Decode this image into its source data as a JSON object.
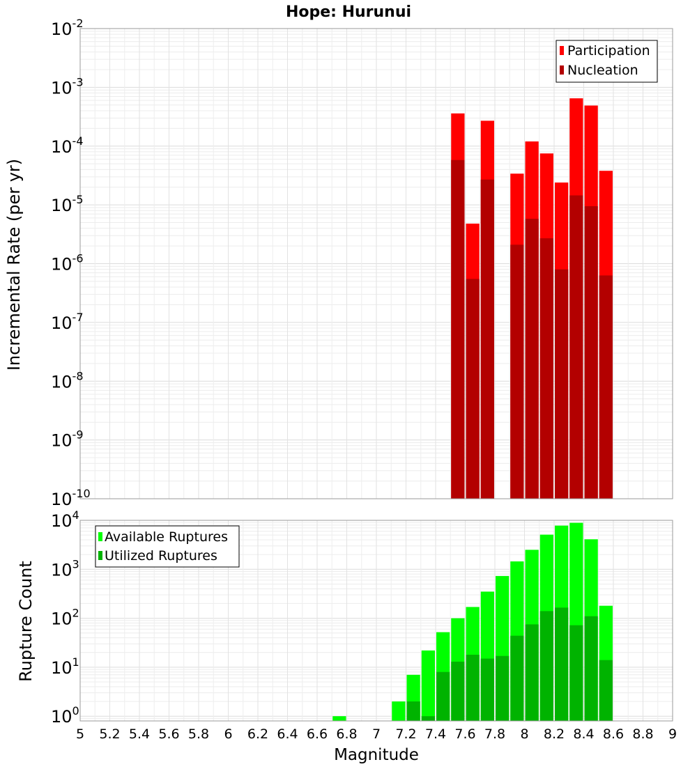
{
  "chart_data": [
    {
      "type": "bar",
      "title": "Hope: Hurunui",
      "xlabel": "",
      "ylabel": "Incremental Rate (per yr)",
      "yscale": "log",
      "ylim": [
        1e-10,
        0.01
      ],
      "xlim": [
        5,
        9
      ],
      "bin_width": 0.1,
      "ytick_labels": [
        {
          "base": "10",
          "exp": "-10"
        },
        {
          "base": "10",
          "exp": "-9"
        },
        {
          "base": "10",
          "exp": "-8"
        },
        {
          "base": "10",
          "exp": "-7"
        },
        {
          "base": "10",
          "exp": "-6"
        },
        {
          "base": "10",
          "exp": "-5"
        },
        {
          "base": "10",
          "exp": "-4"
        },
        {
          "base": "10",
          "exp": "-3"
        },
        {
          "base": "10",
          "exp": "-2"
        }
      ],
      "grid": true,
      "legend_position": "top-right",
      "series": [
        {
          "name": "Participation",
          "color": "#ff0000",
          "points": [
            {
              "x": 7.55,
              "y": 0.00036
            },
            {
              "x": 7.65,
              "y": 4.8e-06
            },
            {
              "x": 7.75,
              "y": 0.00027
            },
            {
              "x": 7.95,
              "y": 3.4e-05
            },
            {
              "x": 8.05,
              "y": 0.00012
            },
            {
              "x": 8.15,
              "y": 7.5e-05
            },
            {
              "x": 8.25,
              "y": 2.4e-05
            },
            {
              "x": 8.35,
              "y": 0.00065
            },
            {
              "x": 8.45,
              "y": 0.00049
            },
            {
              "x": 8.55,
              "y": 3.8e-05
            }
          ]
        },
        {
          "name": "Nucleation",
          "color": "#b30000",
          "points": [
            {
              "x": 7.55,
              "y": 5.8e-05
            },
            {
              "x": 7.65,
              "y": 5.5e-07
            },
            {
              "x": 7.75,
              "y": 2.7e-05
            },
            {
              "x": 7.95,
              "y": 2.1e-06
            },
            {
              "x": 8.05,
              "y": 5.8e-06
            },
            {
              "x": 8.15,
              "y": 2.7e-06
            },
            {
              "x": 8.25,
              "y": 8e-07
            },
            {
              "x": 8.35,
              "y": 1.45e-05
            },
            {
              "x": 8.45,
              "y": 9.5e-06
            },
            {
              "x": 8.55,
              "y": 6.3e-07
            }
          ]
        }
      ]
    },
    {
      "type": "bar",
      "title": "",
      "xlabel": "Magnitude",
      "ylabel": "Rupture Count",
      "yscale": "log",
      "ylim": [
        0.8,
        10000
      ],
      "xlim": [
        5,
        9
      ],
      "bin_width": 0.1,
      "ytick_labels": [
        {
          "base": "10",
          "exp": "0"
        },
        {
          "base": "10",
          "exp": "1"
        },
        {
          "base": "10",
          "exp": "2"
        },
        {
          "base": "10",
          "exp": "3"
        },
        {
          "base": "10",
          "exp": "4"
        }
      ],
      "xtick_labels": [
        "5",
        "5.2",
        "5.4",
        "5.6",
        "5.8",
        "6",
        "6.2",
        "6.4",
        "6.6",
        "6.8",
        "7",
        "7.2",
        "7.4",
        "7.6",
        "7.8",
        "8",
        "8.2",
        "8.4",
        "8.6",
        "8.8",
        "9"
      ],
      "grid": true,
      "legend_position": "top-left",
      "series": [
        {
          "name": "Available Ruptures",
          "color": "#00ff00",
          "points": [
            {
              "x": 6.75,
              "y": 1
            },
            {
              "x": 7.15,
              "y": 2
            },
            {
              "x": 7.25,
              "y": 7
            },
            {
              "x": 7.35,
              "y": 22
            },
            {
              "x": 7.45,
              "y": 52
            },
            {
              "x": 7.55,
              "y": 100
            },
            {
              "x": 7.65,
              "y": 170
            },
            {
              "x": 7.75,
              "y": 350
            },
            {
              "x": 7.85,
              "y": 730
            },
            {
              "x": 7.95,
              "y": 1450
            },
            {
              "x": 8.05,
              "y": 2500
            },
            {
              "x": 8.15,
              "y": 5100
            },
            {
              "x": 8.25,
              "y": 7800
            },
            {
              "x": 8.35,
              "y": 8900
            },
            {
              "x": 8.45,
              "y": 4100
            },
            {
              "x": 8.55,
              "y": 180
            }
          ]
        },
        {
          "name": "Utilized Ruptures",
          "color": "#00b300",
          "points": [
            {
              "x": 7.25,
              "y": 2
            },
            {
              "x": 7.35,
              "y": 1
            },
            {
              "x": 7.45,
              "y": 8
            },
            {
              "x": 7.55,
              "y": 13
            },
            {
              "x": 7.65,
              "y": 18
            },
            {
              "x": 7.75,
              "y": 15
            },
            {
              "x": 7.85,
              "y": 17
            },
            {
              "x": 7.95,
              "y": 44
            },
            {
              "x": 8.05,
              "y": 75
            },
            {
              "x": 8.15,
              "y": 140
            },
            {
              "x": 8.25,
              "y": 165
            },
            {
              "x": 8.35,
              "y": 72
            },
            {
              "x": 8.45,
              "y": 110
            },
            {
              "x": 8.55,
              "y": 14
            }
          ]
        }
      ]
    }
  ]
}
